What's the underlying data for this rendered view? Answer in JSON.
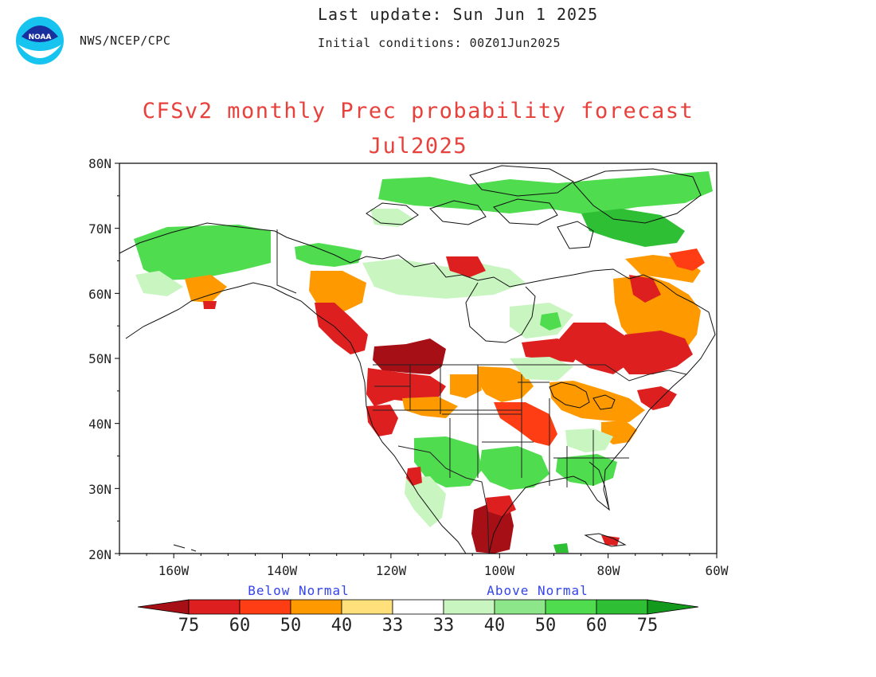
{
  "header": {
    "agency": "NWS/NCEP/CPC",
    "last_update": "Last update: Sun Jun 1 2025",
    "initial_conditions": "Initial conditions: 00Z01Jun2025",
    "logo_icon": "noaa-logo-icon"
  },
  "title": {
    "line1": "CFSv2 monthly Prec probability forecast",
    "line2": "Jul2025"
  },
  "map": {
    "projection": "lat-lon",
    "lon_range": [
      -170,
      -60
    ],
    "lat_range": [
      20,
      80
    ],
    "lat_ticks": [
      "80N",
      "70N",
      "60N",
      "50N",
      "40N",
      "30N",
      "20N"
    ],
    "lon_ticks": [
      "160W",
      "140W",
      "120W",
      "100W",
      "80W",
      "60W"
    ]
  },
  "legend": {
    "below_label": "Below Normal",
    "above_label": "Above Normal",
    "below_values": [
      "75",
      "60",
      "50",
      "40",
      "33"
    ],
    "above_values": [
      "33",
      "40",
      "50",
      "60",
      "75"
    ],
    "colors": {
      "below_75": "#a50f15",
      "below_60": "#de1f1f",
      "below_50": "#ff3d14",
      "below_40": "#ff9900",
      "below_33": "#ffe07a",
      "normal": "#ffffff",
      "above_33": "#c8f5c0",
      "above_40": "#8ee68a",
      "above_50": "#4fdc4f",
      "above_60": "#2fbf35",
      "above_75": "#139a1d"
    }
  }
}
